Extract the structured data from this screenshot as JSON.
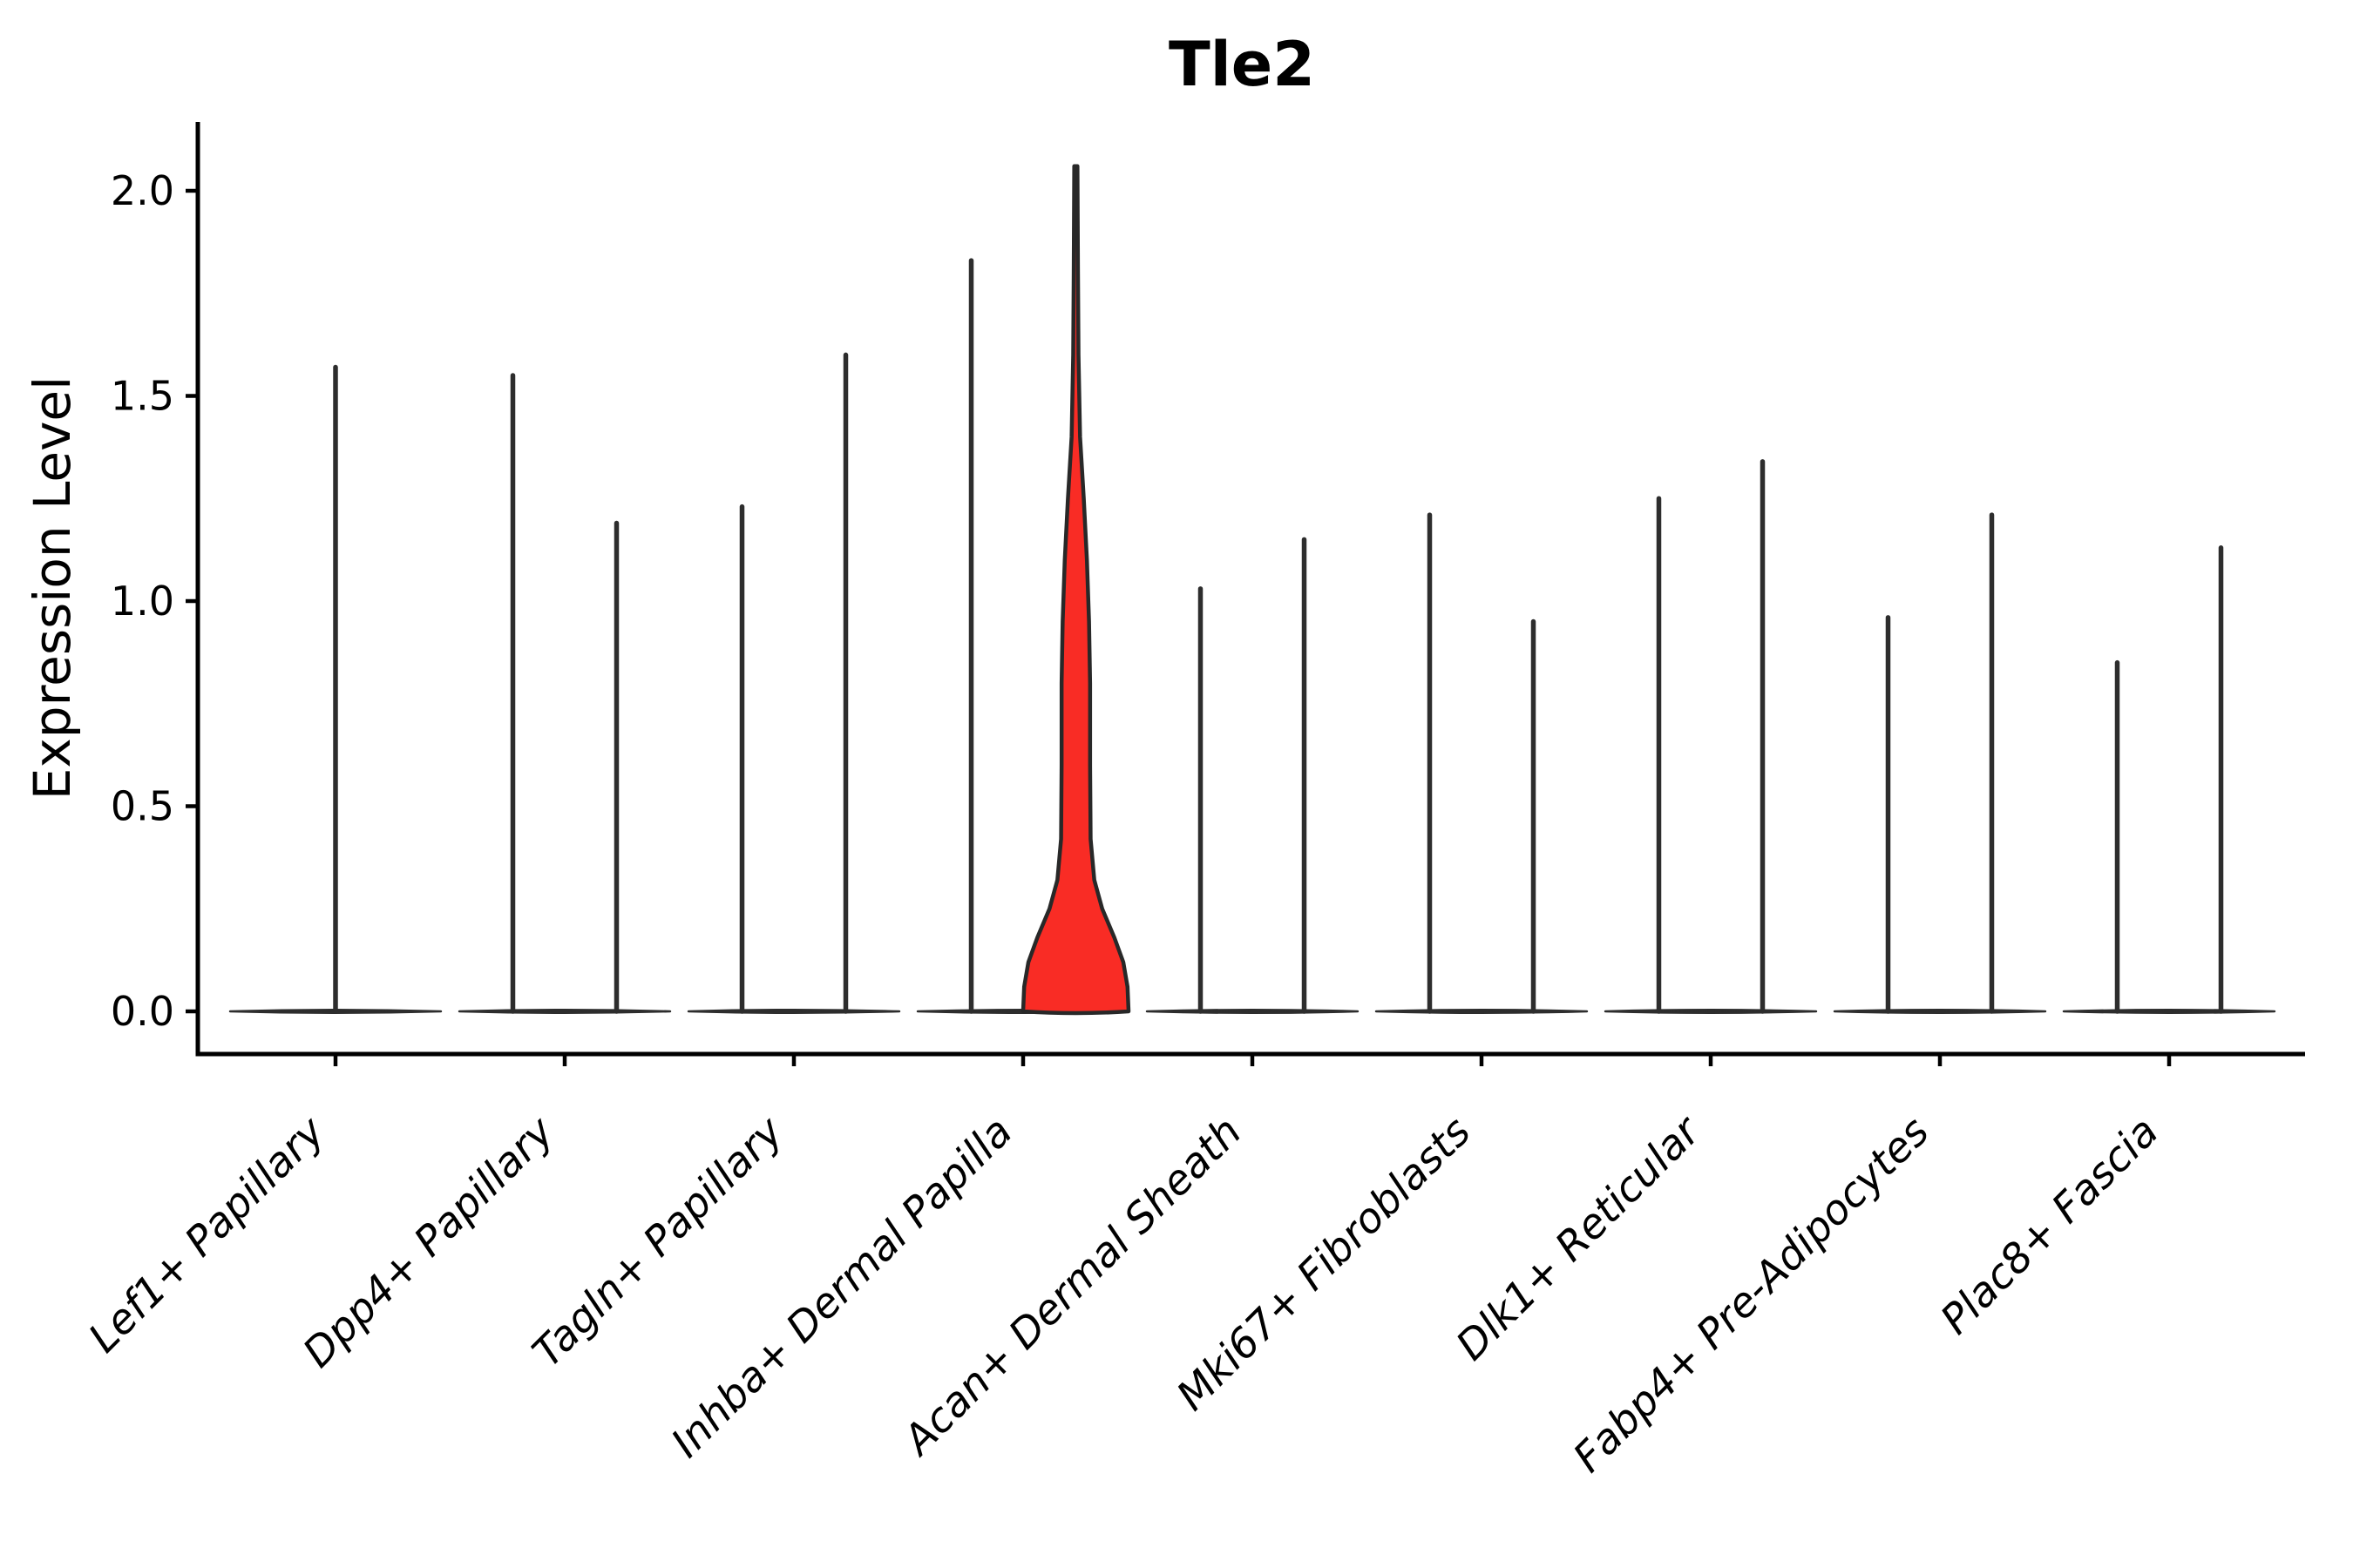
{
  "chart_data": {
    "type": "violin",
    "title": "Tle2",
    "ylabel": "Expression Level",
    "xlabel": "",
    "ylim": [
      -0.1,
      2.17
    ],
    "yticks": [
      "0.0",
      "0.5",
      "1.0",
      "1.5",
      "2.0"
    ],
    "grid": false,
    "legend": null,
    "colors": {
      "violin_line": "#2d2d2d",
      "axis": "#000000",
      "highlight_fill": "#f92c25"
    },
    "categories": [
      "Lef1+ Papillary",
      "Dpp4+ Papillary",
      "Tagln+ Papillary",
      "Inhba+ Dermal Papilla",
      "Acan+ Dermal Sheath",
      "Mki67+ Fibroblasts",
      "Dlk1+ Reticular",
      "Fabp4+ Pre-Adipocytes",
      "Plac8+ Fascia"
    ],
    "violins": [
      {
        "category": "Lef1+ Papillary",
        "spikes": [
          {
            "offset": 0,
            "max": 1.57
          }
        ]
      },
      {
        "category": "Dpp4+ Papillary",
        "spikes": [
          {
            "offset": -1,
            "max": 1.55
          },
          {
            "offset": 1,
            "max": 1.19
          }
        ]
      },
      {
        "category": "Tagln+ Papillary",
        "spikes": [
          {
            "offset": -1,
            "max": 1.23
          },
          {
            "offset": 1,
            "max": 1.6
          }
        ]
      },
      {
        "category": "Inhba+ Dermal Papilla",
        "spikes": [
          {
            "offset": -1,
            "max": 1.83
          }
        ],
        "highlight": {
          "offset": 1,
          "max": 2.06,
          "fill": "#f92c25",
          "width_profile": [
            [
              0.0,
              1.0
            ],
            [
              0.06,
              0.98
            ],
            [
              0.12,
              0.9
            ],
            [
              0.18,
              0.73
            ],
            [
              0.25,
              0.5
            ],
            [
              0.32,
              0.35
            ],
            [
              0.42,
              0.28
            ],
            [
              0.6,
              0.27
            ],
            [
              0.8,
              0.27
            ],
            [
              0.95,
              0.25
            ],
            [
              1.1,
              0.21
            ],
            [
              1.25,
              0.15
            ],
            [
              1.4,
              0.08
            ],
            [
              1.6,
              0.05
            ],
            [
              1.8,
              0.04
            ],
            [
              2.06,
              0.03
            ]
          ]
        }
      },
      {
        "category": "Acan+ Dermal Sheath",
        "spikes": [
          {
            "offset": -1,
            "max": 1.03
          },
          {
            "offset": 1,
            "max": 1.15
          }
        ]
      },
      {
        "category": "Mki67+ Fibroblasts",
        "spikes": [
          {
            "offset": -1,
            "max": 1.21
          },
          {
            "offset": 1,
            "max": 0.95
          }
        ]
      },
      {
        "category": "Dlk1+ Reticular",
        "spikes": [
          {
            "offset": -1,
            "max": 1.25
          },
          {
            "offset": 1,
            "max": 1.34
          }
        ]
      },
      {
        "category": "Fabp4+ Pre-Adipocytes",
        "spikes": [
          {
            "offset": -1,
            "max": 0.96
          },
          {
            "offset": 1,
            "max": 1.21
          }
        ]
      },
      {
        "category": "Plac8+ Fascia",
        "spikes": [
          {
            "offset": -1,
            "max": 0.85
          },
          {
            "offset": 1,
            "max": 1.13
          }
        ]
      }
    ]
  }
}
